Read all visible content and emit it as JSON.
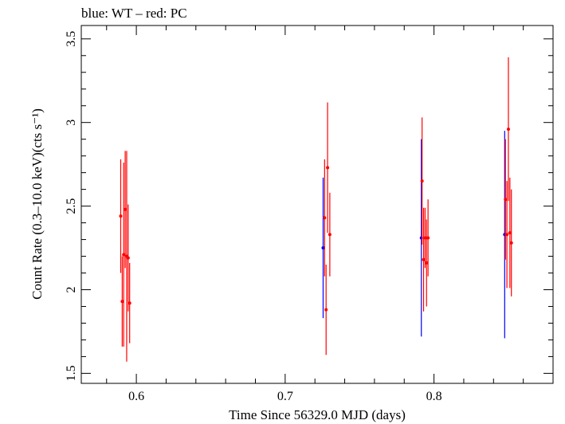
{
  "chart_data": {
    "type": "scatter",
    "title": "blue: WT – red: PC",
    "xlabel": "Time Since 56329.0 MJD (days)",
    "ylabel": "Count Rate (0.3–10.0 keV)(cts s⁻¹)",
    "xlim": [
      0.563,
      0.88
    ],
    "ylim": [
      1.44,
      3.58
    ],
    "x_ticks": [
      "0.6",
      "0.7",
      "0.8"
    ],
    "x_tick_values": [
      0.6,
      0.7,
      0.8
    ],
    "y_ticks": [
      "1.5",
      "2",
      "2.5",
      "3",
      "3.5"
    ],
    "y_tick_values": [
      1.5,
      2.0,
      2.5,
      3.0,
      3.5
    ],
    "grid": false,
    "series": [
      {
        "name": "WT",
        "color": "#0000ff",
        "points": [
          {
            "x": 0.7255,
            "y": 2.25,
            "err": 0.42
          },
          {
            "x": 0.7915,
            "y": 2.31,
            "err": 0.59
          },
          {
            "x": 0.8475,
            "y": 2.33,
            "err": 0.62
          }
        ]
      },
      {
        "name": "PC",
        "color": "#ff0000",
        "points": [
          {
            "x": 0.5895,
            "y": 2.44,
            "err": 0.34
          },
          {
            "x": 0.5905,
            "y": 1.93,
            "err": 0.27
          },
          {
            "x": 0.5915,
            "y": 2.21,
            "err": 0.55
          },
          {
            "x": 0.5925,
            "y": 2.48,
            "err": 0.35
          },
          {
            "x": 0.5935,
            "y": 2.2,
            "err": 0.63
          },
          {
            "x": 0.5945,
            "y": 2.19,
            "err": 0.32
          },
          {
            "x": 0.5955,
            "y": 1.92,
            "err": 0.24
          },
          {
            "x": 0.7265,
            "y": 2.43,
            "err": 0.35
          },
          {
            "x": 0.7275,
            "y": 1.88,
            "err": 0.27
          },
          {
            "x": 0.7285,
            "y": 2.73,
            "err": 0.39
          },
          {
            "x": 0.73,
            "y": 2.33,
            "err": 0.25
          },
          {
            "x": 0.792,
            "y": 2.65,
            "err": 0.38
          },
          {
            "x": 0.793,
            "y": 2.18,
            "err": 0.31
          },
          {
            "x": 0.794,
            "y": 2.31,
            "err": 0.18
          },
          {
            "x": 0.795,
            "y": 2.16,
            "err": 0.26
          },
          {
            "x": 0.796,
            "y": 2.31,
            "err": 0.23
          },
          {
            "x": 0.848,
            "y": 2.54,
            "err": 0.36
          },
          {
            "x": 0.849,
            "y": 2.33,
            "err": 0.32
          },
          {
            "x": 0.85,
            "y": 2.96,
            "err": 0.43
          },
          {
            "x": 0.851,
            "y": 2.34,
            "err": 0.33
          },
          {
            "x": 0.852,
            "y": 2.28,
            "err": 0.32
          }
        ]
      }
    ]
  }
}
